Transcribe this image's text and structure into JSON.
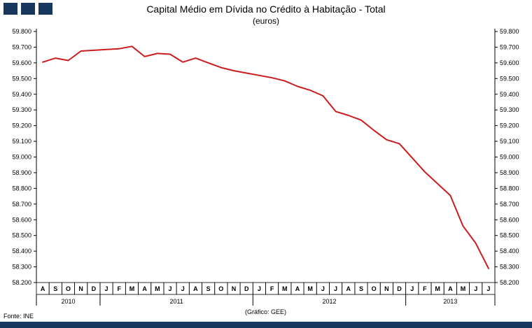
{
  "header": {
    "title": "Capital Médio em Dívida no Crédito à Habitação - Total",
    "subtitle": "(euros)"
  },
  "logo": {
    "color": "#17375E",
    "squares": 3
  },
  "footer": {
    "source": "Fonte: INE",
    "credit": "(Gráfico:  GEE)",
    "bar_color": "#17375E"
  },
  "chart_data": {
    "type": "line",
    "title": "Capital Médio em Dívida no Crédito à Habitação - Total",
    "subtitle": "(euros)",
    "unit": "euros",
    "grid": false,
    "legend": "none",
    "y_axis_sides": [
      "left",
      "right"
    ],
    "ylim": [
      58200,
      59800
    ],
    "ytick_step": 100,
    "line_color": "#CC1B1E",
    "months": [
      "A",
      "S",
      "O",
      "N",
      "D",
      "J",
      "F",
      "M",
      "A",
      "M",
      "J",
      "J",
      "A",
      "S",
      "O",
      "N",
      "D",
      "J",
      "F",
      "M",
      "A",
      "M",
      "J",
      "J",
      "A",
      "S",
      "O",
      "N",
      "D",
      "J",
      "F",
      "M",
      "A",
      "M",
      "J",
      "J"
    ],
    "year_groups": [
      {
        "label": "2010",
        "months": 5
      },
      {
        "label": "2011",
        "months": 12
      },
      {
        "label": "2012",
        "months": 12
      },
      {
        "label": "2013",
        "months": 7
      }
    ],
    "values": [
      59605,
      59630,
      59615,
      59675,
      59680,
      59685,
      59690,
      59705,
      59640,
      59660,
      59655,
      59605,
      59630,
      59600,
      59570,
      59550,
      59535,
      59520,
      59505,
      59485,
      59450,
      59425,
      59390,
      59290,
      59265,
      59235,
      59170,
      59110,
      59085,
      58995,
      58905,
      58830,
      58755,
      58560,
      58450,
      58290
    ]
  }
}
